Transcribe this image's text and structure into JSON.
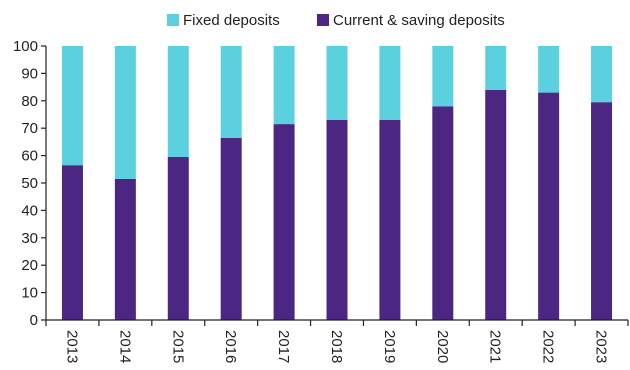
{
  "chart_data": {
    "type": "bar",
    "stacked": true,
    "title": "",
    "xlabel": "",
    "ylabel": "",
    "ylim": [
      0,
      100
    ],
    "yticks": [
      0,
      10,
      20,
      30,
      40,
      50,
      60,
      70,
      80,
      90,
      100
    ],
    "categories": [
      "2013",
      "2014",
      "2015",
      "2016",
      "2017",
      "2018",
      "2019",
      "2020",
      "2021",
      "2022",
      "2023"
    ],
    "series": [
      {
        "name": "Current & saving deposits",
        "color": "#4b2683",
        "values": [
          56.5,
          51.5,
          59.5,
          66.5,
          71.5,
          73,
          73,
          78,
          84,
          83,
          79.5
        ]
      },
      {
        "name": "Fixed deposits",
        "color": "#5bd1df",
        "values": [
          43.5,
          48.5,
          40.5,
          33.5,
          28.5,
          27,
          27,
          22,
          16,
          17,
          20.5
        ]
      }
    ],
    "legend": {
      "position": "top",
      "order": [
        "Fixed deposits",
        "Current & saving deposits"
      ]
    },
    "grid": false
  }
}
